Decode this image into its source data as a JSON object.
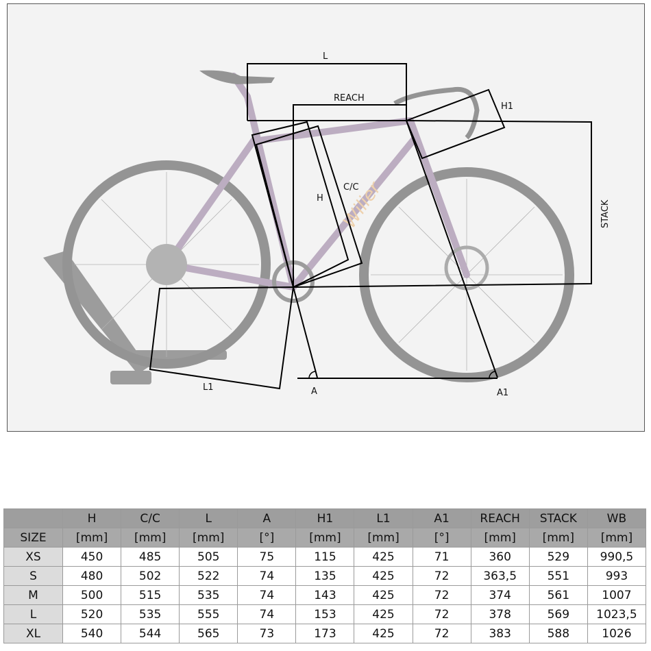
{
  "diagram": {
    "labels": {
      "L": "L",
      "REACH": "REACH",
      "H1": "H1",
      "STACK": "STACK",
      "CC": "C/C",
      "H": "H",
      "L1": "L1",
      "A": "A",
      "A1": "A1"
    },
    "colors": {
      "frame": "#8a6f93",
      "lines": "#000000",
      "decal": "#e8a85a"
    }
  },
  "table": {
    "headers": [
      "",
      "H",
      "C/C",
      "L",
      "A",
      "H1",
      "L1",
      "A1",
      "REACH",
      "STACK",
      "WB"
    ],
    "units": [
      "SIZE",
      "[mm]",
      "[mm]",
      "[mm]",
      "[°]",
      "[mm]",
      "[mm]",
      "[°]",
      "[mm]",
      "[mm]",
      "[mm]"
    ],
    "rows": [
      [
        "XS",
        "450",
        "485",
        "505",
        "75",
        "115",
        "425",
        "71",
        "360",
        "529",
        "990,5"
      ],
      [
        "S",
        "480",
        "502",
        "522",
        "74",
        "135",
        "425",
        "72",
        "363,5",
        "551",
        "993"
      ],
      [
        "M",
        "500",
        "515",
        "535",
        "74",
        "143",
        "425",
        "72",
        "374",
        "561",
        "1007"
      ],
      [
        "L",
        "520",
        "535",
        "555",
        "74",
        "153",
        "425",
        "72",
        "378",
        "569",
        "1023,5"
      ],
      [
        "XL",
        "540",
        "544",
        "565",
        "73",
        "173",
        "425",
        "72",
        "383",
        "588",
        "1026"
      ]
    ]
  }
}
